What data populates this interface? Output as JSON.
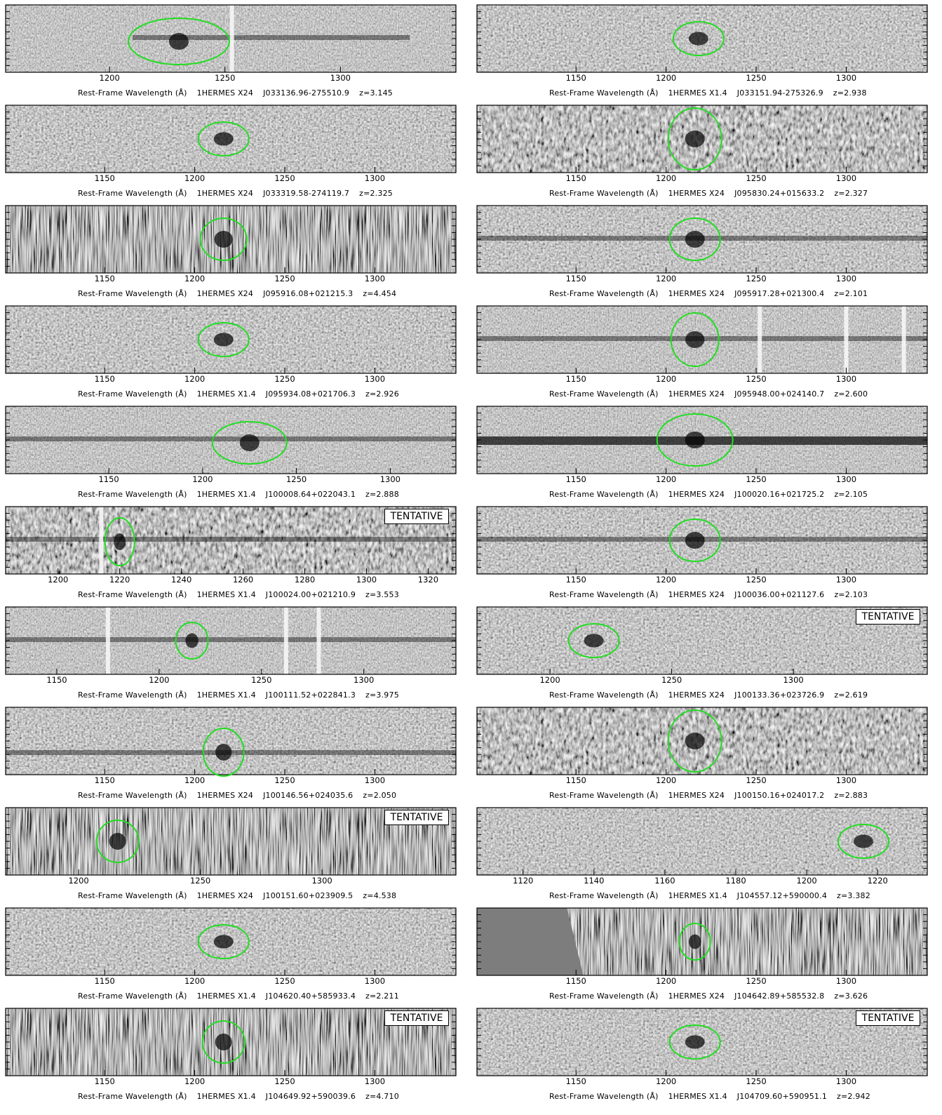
{
  "axis_title": "Rest-Frame Wavelength (Å)",
  "tentative_label": "TENTATIVE",
  "colors": {
    "marker": "#22dd22",
    "background": "#ffffff",
    "frame": "#000000"
  },
  "panels": [
    {
      "id": "J033136.96-275510.9",
      "field": "1HERMES X24",
      "z": "z=3.145",
      "ticks": [
        1200,
        1250,
        1300
      ],
      "xlim": [
        1155,
        1350
      ],
      "marker_wl": 1230,
      "tentative": false,
      "style": "A"
    },
    {
      "id": "J033151.94-275326.9",
      "field": "1HERMES X1.4",
      "z": "z=2.938",
      "ticks": [
        1150,
        1200,
        1250,
        1300
      ],
      "xlim": [
        1095,
        1345
      ],
      "marker_wl": 1218,
      "tentative": false,
      "style": "B"
    },
    {
      "id": "J033319.58-274119.7",
      "field": "1HERMES X24",
      "z": "z=2.325",
      "ticks": [
        1150,
        1200,
        1250,
        1300
      ],
      "xlim": [
        1095,
        1345
      ],
      "marker_wl": 1216,
      "tentative": false,
      "style": "B"
    },
    {
      "id": "J095830.24+015633.2",
      "field": "1HERMES X24",
      "z": "z=2.327",
      "ticks": [
        1150,
        1200,
        1250,
        1300
      ],
      "xlim": [
        1095,
        1345
      ],
      "marker_wl": 1216,
      "tentative": false,
      "style": "C"
    },
    {
      "id": "J095916.08+021215.3",
      "field": "1HERMES X24",
      "z": "z=4.454",
      "ticks": [
        1150,
        1200,
        1250,
        1300
      ],
      "xlim": [
        1095,
        1345
      ],
      "marker_wl": 1216,
      "tentative": false,
      "style": "D"
    },
    {
      "id": "J095917.28+021300.4",
      "field": "1HERMES X24",
      "z": "z=2.101",
      "ticks": [
        1150,
        1200,
        1250,
        1300
      ],
      "xlim": [
        1095,
        1345
      ],
      "marker_wl": 1216,
      "tentative": false,
      "style": "E"
    },
    {
      "id": "J095934.08+021706.3",
      "field": "1HERMES X1.4",
      "z": "z=2.926",
      "ticks": [
        1150,
        1200,
        1250,
        1300
      ],
      "xlim": [
        1095,
        1345
      ],
      "marker_wl": 1216,
      "tentative": false,
      "style": "B"
    },
    {
      "id": "J095948.00+024140.7",
      "field": "1HERMES X24",
      "z": "z=2.600",
      "ticks": [
        1150,
        1200,
        1250,
        1300
      ],
      "xlim": [
        1095,
        1345
      ],
      "marker_wl": 1216,
      "tentative": false,
      "style": "F"
    },
    {
      "id": "J100008.64+022043.1",
      "field": "1HERMES X1.4",
      "z": "z=2.888",
      "ticks": [
        1150,
        1200,
        1250,
        1300
      ],
      "xlim": [
        1095,
        1335
      ],
      "marker_wl": 1225,
      "tentative": false,
      "style": "G"
    },
    {
      "id": "J100020.16+021725.2",
      "field": "1HERMES X24",
      "z": "z=2.105",
      "ticks": [
        1150,
        1200,
        1250,
        1300
      ],
      "xlim": [
        1095,
        1345
      ],
      "marker_wl": 1216,
      "tentative": false,
      "style": "H"
    },
    {
      "id": "J100024.00+021210.9",
      "field": "1HERMES X1.4",
      "z": "z=3.553",
      "ticks": [
        1200,
        1220,
        1240,
        1260,
        1280,
        1300,
        1320
      ],
      "xlim": [
        1183,
        1329
      ],
      "marker_wl": 1220,
      "tentative": true,
      "style": "I"
    },
    {
      "id": "J100036.00+021127.6",
      "field": "1HERMES X24",
      "z": "z=2.103",
      "ticks": [
        1150,
        1200,
        1250,
        1300
      ],
      "xlim": [
        1095,
        1345
      ],
      "marker_wl": 1216,
      "tentative": false,
      "style": "E"
    },
    {
      "id": "J100111.52+022841.3",
      "field": "1HERMES X1.4",
      "z": "z=3.975",
      "ticks": [
        1150,
        1200,
        1250,
        1300
      ],
      "xlim": [
        1125,
        1345
      ],
      "marker_wl": 1216,
      "tentative": false,
      "style": "J"
    },
    {
      "id": "J100133.36+023726.9",
      "field": "1HERMES X24",
      "z": "z=2.619",
      "ticks": [
        1200,
        1250,
        1300
      ],
      "xlim": [
        1170,
        1355
      ],
      "marker_wl": 1218,
      "tentative": true,
      "style": "B"
    },
    {
      "id": "J100146.56+024035.6",
      "field": "1HERMES X24",
      "z": "z=2.050",
      "ticks": [
        1150,
        1200,
        1250,
        1300
      ],
      "xlim": [
        1095,
        1345
      ],
      "marker_wl": 1216,
      "tentative": false,
      "style": "K"
    },
    {
      "id": "J100150.16+024017.2",
      "field": "1HERMES X24",
      "z": "z=2.883",
      "ticks": [
        1150,
        1200,
        1250,
        1300
      ],
      "xlim": [
        1095,
        1345
      ],
      "marker_wl": 1216,
      "tentative": false,
      "style": "C"
    },
    {
      "id": "J100151.60+023909.5",
      "field": "1HERMES X24",
      "z": "z=4.538",
      "ticks": [
        1200,
        1250,
        1300
      ],
      "xlim": [
        1170,
        1355
      ],
      "marker_wl": 1216,
      "tentative": true,
      "style": "L"
    },
    {
      "id": "J104557.12+590000.4",
      "field": "1HERMES X1.4",
      "z": "z=3.382",
      "ticks": [
        1120,
        1140,
        1160,
        1180,
        1200,
        1220
      ],
      "xlim": [
        1107,
        1234
      ],
      "marker_wl": 1216,
      "tentative": false,
      "style": "B"
    },
    {
      "id": "J104620.40+585933.4",
      "field": "1HERMES X1.4",
      "z": "z=2.211",
      "ticks": [
        1150,
        1200,
        1250,
        1300
      ],
      "xlim": [
        1095,
        1345
      ],
      "marker_wl": 1216,
      "tentative": false,
      "style": "B"
    },
    {
      "id": "J104642.89+585532.8",
      "field": "1HERMES X24",
      "z": "z=3.626",
      "ticks": [
        1150,
        1200,
        1250,
        1300
      ],
      "xlim": [
        1095,
        1345
      ],
      "marker_wl": 1216,
      "tentative": false,
      "style": "M"
    },
    {
      "id": "J104649.92+590039.6",
      "field": "1HERMES X1.4",
      "z": "z=4.710",
      "ticks": [
        1150,
        1200,
        1250,
        1300
      ],
      "xlim": [
        1095,
        1345
      ],
      "marker_wl": 1216,
      "tentative": true,
      "style": "L"
    },
    {
      "id": "J104709.60+590951.1",
      "field": "1HERMES X1.4",
      "z": "z=2.942",
      "ticks": [
        1150,
        1200,
        1250,
        1300
      ],
      "xlim": [
        1095,
        1345
      ],
      "marker_wl": 1216,
      "tentative": true,
      "style": "B"
    }
  ]
}
